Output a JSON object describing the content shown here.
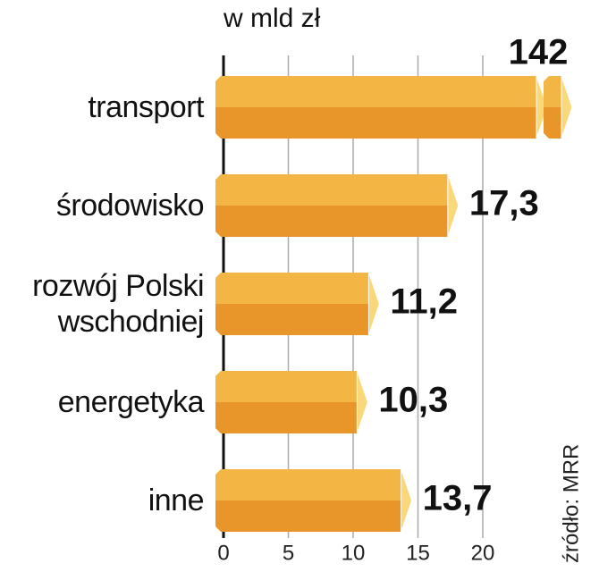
{
  "chart_data": {
    "type": "bar",
    "orientation": "horizontal",
    "title": "w mld zł",
    "source": "źródło: MRR",
    "categories": [
      "transport",
      "środowisko",
      "rozwój Polski\nwschodniej",
      "energetyka",
      "inne"
    ],
    "values": [
      142,
      17.3,
      11.2,
      10.3,
      13.7
    ],
    "value_labels": [
      "142",
      "17,3",
      "11,2",
      "10,3",
      "13,7"
    ],
    "colors": {
      "top": "#f3b645",
      "bottom": "#e8952a",
      "tip": "#f9d87c"
    },
    "xlim": [
      0,
      20
    ],
    "xticks": [
      0,
      5,
      10,
      15,
      20
    ],
    "grid": true
  }
}
